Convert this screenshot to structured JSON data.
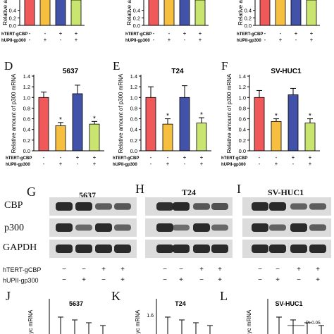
{
  "colors": {
    "red": "#f0595a",
    "orange": "#f7bf3f",
    "blue": "#4152a8",
    "green": "#c9e56f",
    "blot_bg": "#dcdcdc",
    "band": "#202020"
  },
  "top_row": {
    "panel_labels": [],
    "ylabel_fragment": "Relative a",
    "condition_labels": [
      "hTERT-gCBP",
      "hUPII-gp300"
    ]
  },
  "chart_data": [
    {
      "panel": "A",
      "type": "bar",
      "title": "",
      "categories": [
        "-/-",
        "-/+",
        "+/+",
        "+/+"
      ],
      "series": [
        {
          "values": [
            1.0,
            1.0,
            0.92,
            0.9
          ]
        }
      ],
      "ylim": [
        0,
        0.6
      ],
      "yticks": [
        "0.4",
        "0.2",
        "0.0"
      ],
      "ylabel": "Relative a"
    },
    {
      "panel": "B",
      "type": "bar",
      "title": "",
      "categories": [
        "-/-",
        "-/+",
        "+/+",
        "+/+"
      ],
      "series": [
        {
          "values": [
            1.0,
            1.0,
            0.92,
            0.9
          ]
        }
      ],
      "ylim": [
        0,
        0.6
      ],
      "yticks": [
        "0.4",
        "0.2",
        "0.0"
      ],
      "ylabel": "Relative a"
    },
    {
      "panel": "C",
      "type": "bar",
      "title": "",
      "categories": [
        "-/-",
        "-/+",
        "+/+",
        "+/+"
      ],
      "series": [
        {
          "values": [
            1.0,
            1.0,
            0.92,
            0.9
          ]
        }
      ],
      "ylim": [
        0,
        0.6
      ],
      "yticks": [
        "0.4",
        "0.2",
        "0.0"
      ],
      "ylabel": "Relative a"
    },
    {
      "panel": "D",
      "type": "bar",
      "title": "5637",
      "ylabel": "Relative amount of p300 mRNA",
      "ylim": [
        0,
        1.4
      ],
      "yticks": [
        "1.4",
        "1.2",
        "1.0",
        "0.8",
        "0.6",
        "0.4",
        "0.2",
        "0.0"
      ],
      "values": [
        1.0,
        0.47,
        1.07,
        0.5
      ],
      "errors": [
        0.1,
        0.06,
        0.16,
        0.05
      ],
      "stars": [
        "",
        "*",
        "",
        "*"
      ],
      "hTERT_gCBP": [
        "-",
        "-",
        "+",
        "+"
      ],
      "hUPII_gp300": [
        "-",
        "+",
        "-",
        "+"
      ]
    },
    {
      "panel": "E",
      "type": "bar",
      "title": "T24",
      "ylabel": "Relative amount of p300 mRNA",
      "ylim": [
        0,
        1.4
      ],
      "yticks": [
        "1.4",
        "1.2",
        "1.0",
        "0.8",
        "0.6",
        "0.4",
        "0.2",
        "0.0"
      ],
      "values": [
        1.0,
        0.5,
        1.0,
        0.52
      ],
      "errors": [
        0.2,
        0.1,
        0.22,
        0.1
      ],
      "stars": [
        "",
        "*",
        "",
        "*"
      ],
      "hTERT_gCBP": [
        "-",
        "-",
        "+",
        "+"
      ],
      "hUPII_gp300": [
        "-",
        "+",
        "-",
        "+"
      ]
    },
    {
      "panel": "F",
      "type": "bar",
      "title": "SV-HUC1",
      "ylabel": "Relative amount of p300 mRNA",
      "ylim": [
        0,
        1.4
      ],
      "yticks": [
        "1.4",
        "1.2",
        "1.0",
        "0.8",
        "0.6",
        "0.4",
        "0.2",
        "0.0"
      ],
      "values": [
        1.0,
        0.55,
        1.05,
        0.52
      ],
      "errors": [
        0.13,
        0.05,
        0.12,
        0.08
      ],
      "stars": [
        "",
        "*",
        "",
        "*"
      ],
      "hTERT_gCBP": [
        "-",
        "-",
        "+",
        "+"
      ],
      "hUPII_gp300": [
        "-",
        "+",
        "-",
        "+"
      ]
    },
    {
      "panel": "J",
      "type": "bar",
      "title": "5637",
      "ylabel": "Myc mRNA",
      "values": [
        1.0,
        1.0,
        1.0,
        1.0
      ]
    },
    {
      "panel": "K",
      "type": "bar",
      "title": "T24",
      "ylabel": "Myc mRNA",
      "yticks": [
        "1.6"
      ],
      "values": [
        1.0,
        1.0,
        1.0,
        1.0
      ]
    },
    {
      "panel": "L",
      "type": "bar",
      "title": "SV-HUC1",
      "ylabel": "Myc mRNA",
      "annotation": "P>0.05",
      "values": [
        1.0,
        1.0,
        1.0,
        1.0
      ]
    }
  ],
  "mid_row": {
    "panel_labels": [
      "D",
      "E",
      "F"
    ],
    "condition_labels": [
      "hTERT-gCBP",
      "hUPII-gp300"
    ]
  },
  "blots": {
    "panel_labels": [
      "G",
      "H",
      "I"
    ],
    "titles": [
      "5637",
      "T24",
      "SV-HUC1"
    ],
    "row_labels": [
      "CBP",
      "p300",
      "GAPDH"
    ],
    "condition_labels": [
      "hTERT-gCBP",
      "hUPII-gp300"
    ],
    "hTERT_gCBP": [
      "−",
      "−",
      "+",
      "+"
    ],
    "hUPII_gp300": [
      "−",
      "+",
      "−",
      "+"
    ],
    "intensity": {
      "5637": {
        "CBP": [
          1.0,
          1.0,
          0.55,
          0.6
        ],
        "p300": [
          1.0,
          0.45,
          1.0,
          0.5
        ],
        "GAPDH": [
          1.0,
          1.0,
          1.0,
          1.0
        ]
      },
      "T24": {
        "CBP": [
          0.95,
          1.0,
          0.6,
          0.65
        ],
        "p300": [
          1.0,
          0.4,
          1.0,
          0.45
        ],
        "GAPDH": [
          1.0,
          1.0,
          1.0,
          1.0
        ]
      },
      "SV-HUC1": {
        "CBP": [
          1.0,
          1.0,
          0.5,
          0.55
        ],
        "p300": [
          1.0,
          0.5,
          1.0,
          0.55
        ],
        "GAPDH": [
          1.0,
          1.0,
          1.0,
          1.0
        ]
      }
    }
  },
  "bottom_row": {
    "panel_labels": [
      "J",
      "K",
      "L"
    ]
  }
}
